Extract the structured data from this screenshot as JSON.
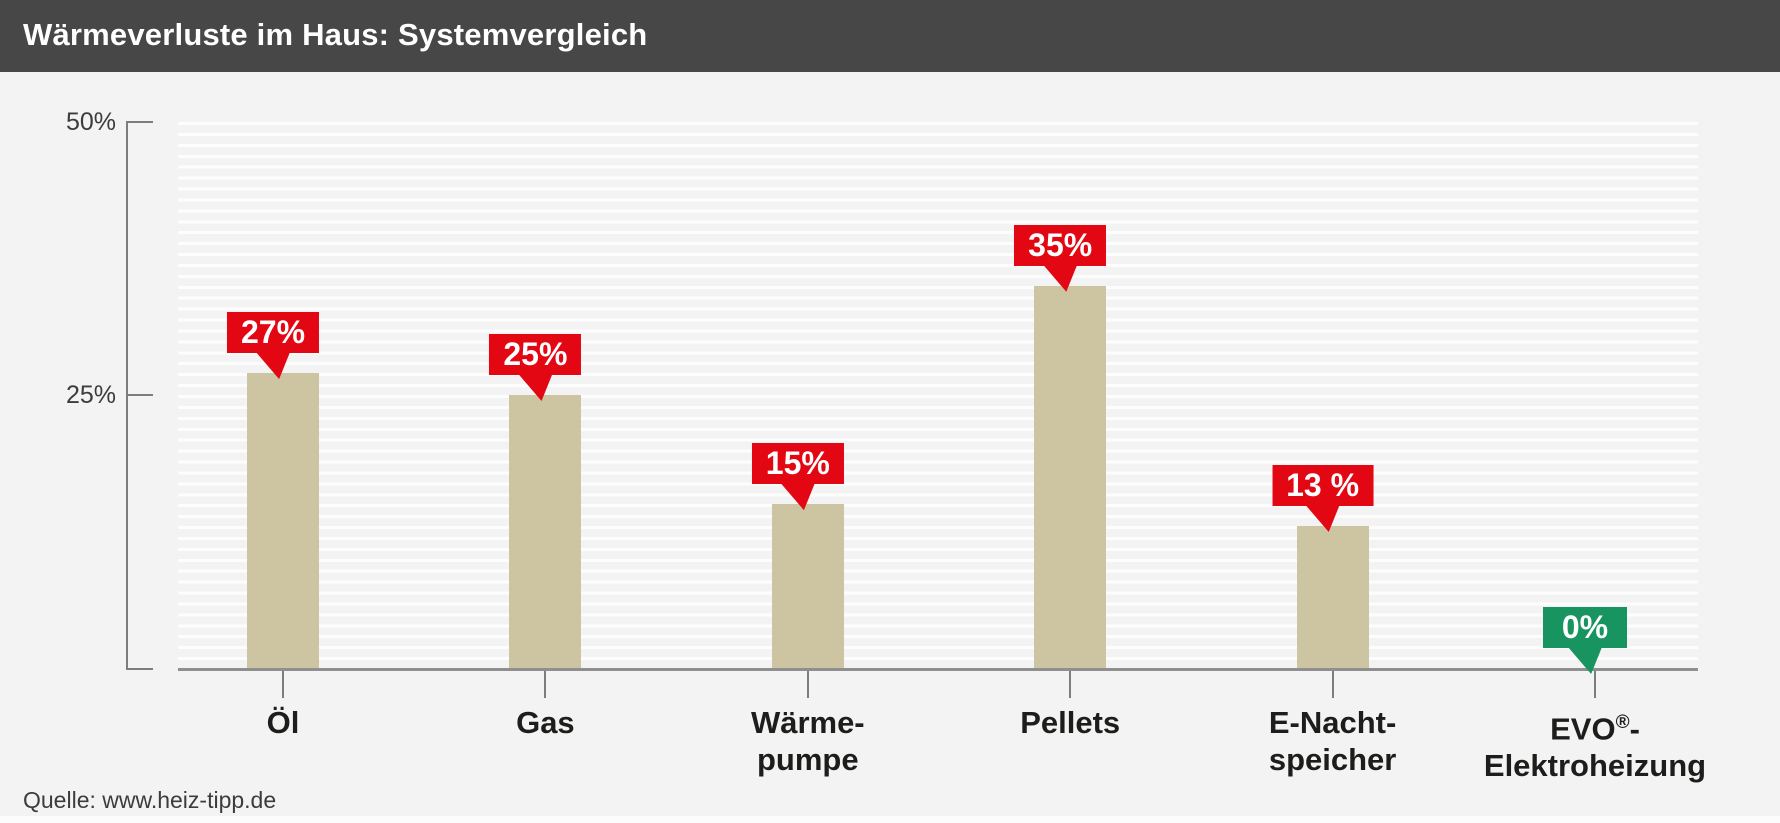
{
  "header": {
    "title": "Wärmeverluste im Haus: Systemvergleich"
  },
  "axis": {
    "y_ticks": [
      {
        "label": "50%",
        "value": 50
      },
      {
        "label": "25%",
        "value": 25
      }
    ]
  },
  "chart_data": {
    "type": "bar",
    "title": "Wärmeverluste im Haus: Systemvergleich",
    "xlabel": "",
    "ylabel": "",
    "ylim": [
      0,
      50
    ],
    "grid": "horizontal-stripes-every-1pct",
    "legend": false,
    "categories": [
      "Öl",
      "Gas",
      "Wärme-pumpe",
      "Pellets",
      "E-Nacht-speicher",
      "EVO®-Elektroheizung"
    ],
    "values": [
      27,
      25,
      15,
      35,
      13,
      0
    ],
    "bars": [
      {
        "label_lines": [
          "Öl"
        ],
        "value": 27,
        "value_label": "27%",
        "badge_color": "#e30613"
      },
      {
        "label_lines": [
          "Gas"
        ],
        "value": 25,
        "value_label": "25%",
        "badge_color": "#e30613"
      },
      {
        "label_lines": [
          "Wärme-",
          "pumpe"
        ],
        "value": 15,
        "value_label": "15%",
        "badge_color": "#e30613"
      },
      {
        "label_lines": [
          "Pellets"
        ],
        "value": 35,
        "value_label": "35%",
        "badge_color": "#e30613"
      },
      {
        "label_lines": [
          "E-Nacht-",
          "speicher"
        ],
        "value": 13,
        "value_label": "13 %",
        "badge_color": "#e30613"
      },
      {
        "label_lines": [
          "EVO®-",
          "Elektroheizung"
        ],
        "value": 0,
        "value_label": "0%",
        "badge_color": "#17945f"
      }
    ],
    "colors": {
      "bar": "#cdc5a2",
      "badge_red": "#e30613",
      "badge_green": "#17945f",
      "header_bg": "#474747",
      "page_bg": "#f3f3f3"
    }
  },
  "source": {
    "label": "Quelle: www.heiz-tipp.de"
  }
}
